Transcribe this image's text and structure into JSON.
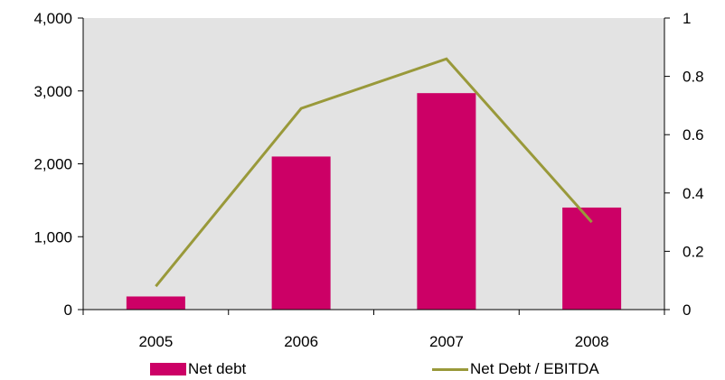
{
  "chart_data": {
    "type": "bar",
    "categories": [
      "2005",
      "2006",
      "2007",
      "2008"
    ],
    "series": [
      {
        "name": "Net debt",
        "type": "bar",
        "axis": "left",
        "color": "#cc0066",
        "values": [
          180,
          2100,
          2970,
          1400
        ]
      },
      {
        "name": "Net Debt / EBITDA",
        "type": "line",
        "axis": "right",
        "color": "#99993a",
        "values": [
          0.08,
          0.69,
          0.86,
          0.3
        ]
      }
    ],
    "y_left": {
      "min": 0,
      "max": 4000,
      "ticks": [
        0,
        1000,
        2000,
        3000,
        4000
      ],
      "tick_labels": [
        "0",
        "1,000",
        "2,000",
        "3,000",
        "4,000"
      ]
    },
    "y_right": {
      "min": 0,
      "max": 1,
      "ticks": [
        0,
        0.2,
        0.4,
        0.6,
        0.8,
        1
      ],
      "tick_labels": [
        "0",
        "0.2",
        "0.4",
        "0.6",
        "0.8",
        "1"
      ]
    },
    "plot_background": "#e3e3e3",
    "grid": false,
    "legend_position": "bottom"
  }
}
